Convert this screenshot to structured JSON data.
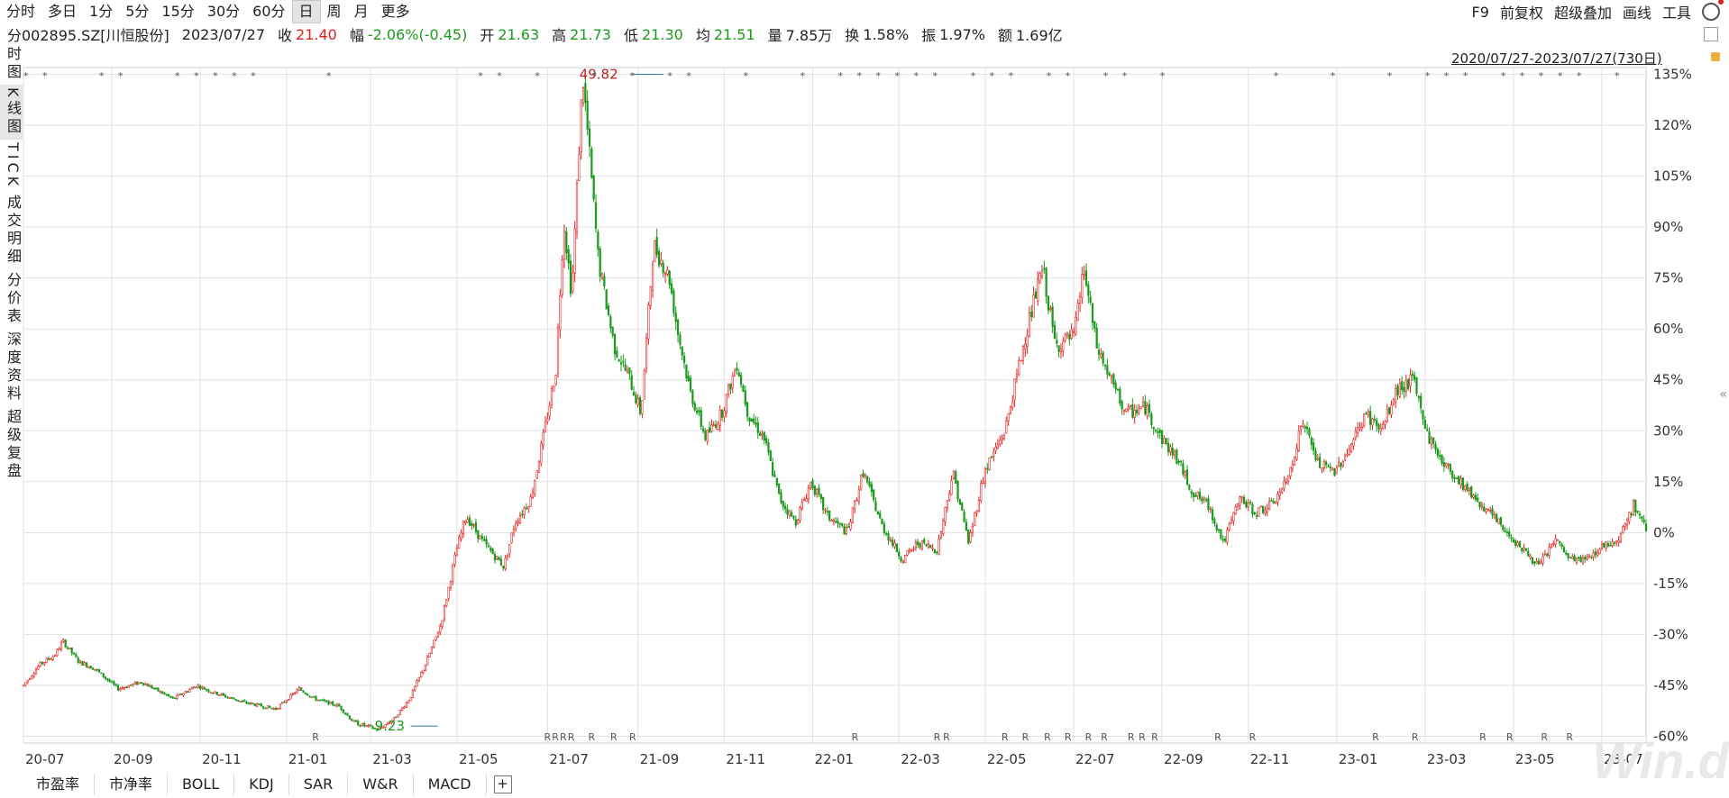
{
  "toolbar": {
    "period_tabs": [
      "分时",
      "多日",
      "1分",
      "5分",
      "15分",
      "30分",
      "60分",
      "日",
      "周",
      "月",
      "更多"
    ],
    "active_period": "日",
    "right_tools": [
      "F9",
      "前复权",
      "超级叠加",
      "画线",
      "工具"
    ]
  },
  "quote": {
    "code": "002895.SZ[川恒股份]",
    "date": "2023/07/27",
    "close_label": "收",
    "close": "21.40",
    "change_label": "幅",
    "change": "-2.06%(-0.45)",
    "open_label": "开",
    "open": "21.63",
    "high_label": "高",
    "high": "21.73",
    "low_label": "低",
    "low": "21.30",
    "avg_label": "均",
    "avg": "21.51",
    "vol_label": "量",
    "vol": "7.85万",
    "turnover_label": "换",
    "turnover": "1.58%",
    "amplitude_label": "振",
    "amplitude": "1.97%",
    "amount_label": "额",
    "amount": "1.69亿"
  },
  "sidebar": [
    "分时图",
    "K线图",
    "TICK",
    "成交明细",
    "分价表",
    "深度资料",
    "超级复盘"
  ],
  "sidebar_active": "K线图",
  "range_label": "2020/07/27-2023/07/27(730日)",
  "bottom_tabs": [
    "市盈率",
    "市净率",
    "BOLL",
    "KDJ",
    "SAR",
    "W&R",
    "MACD"
  ],
  "watermark": "Win.d",
  "colors": {
    "up": "#e02020",
    "down": "#1a9a1a",
    "grid": "#dcdcdc"
  },
  "chart_data": {
    "type": "candlestick",
    "ylabel_unit": "%",
    "ylim": [
      -62,
      137
    ],
    "y_ticks": [
      135,
      120,
      105,
      90,
      75,
      60,
      45,
      30,
      15,
      0,
      -15,
      -30,
      -45,
      -60
    ],
    "x_tick_labels": [
      "20-07",
      "20-09",
      "20-11",
      "21-01",
      "21-03",
      "21-05",
      "21-07",
      "21-09",
      "21-11",
      "22-01",
      "22-03",
      "22-05",
      "22-07",
      "22-09",
      "22-11",
      "23-01",
      "23-03",
      "23-05",
      "23-07"
    ],
    "x_tick_index": [
      0,
      42,
      84,
      125,
      165,
      206,
      249,
      292,
      333,
      375,
      416,
      457,
      499,
      541,
      582,
      624,
      666,
      708,
      750
    ],
    "n_days": 772,
    "max_label": "49.82",
    "max_index": 289,
    "min_label": "9.23",
    "min_index": 184,
    "key_points": [
      [
        0,
        -45
      ],
      [
        10,
        -39
      ],
      [
        20,
        -36
      ],
      [
        25,
        -32
      ],
      [
        35,
        -38
      ],
      [
        45,
        -40
      ],
      [
        60,
        -46
      ],
      [
        75,
        -44
      ],
      [
        95,
        -49
      ],
      [
        110,
        -45
      ],
      [
        120,
        -47
      ],
      [
        140,
        -50
      ],
      [
        160,
        -52
      ],
      [
        175,
        -46
      ],
      [
        185,
        -49
      ],
      [
        200,
        -51
      ],
      [
        210,
        -56
      ],
      [
        225,
        -58
      ],
      [
        235,
        -55
      ],
      [
        245,
        -49
      ],
      [
        255,
        -39
      ],
      [
        265,
        -27
      ],
      [
        275,
        -5
      ],
      [
        281,
        5
      ],
      [
        292,
        -3
      ],
      [
        305,
        -10
      ],
      [
        312,
        3
      ],
      [
        322,
        10
      ],
      [
        330,
        28
      ],
      [
        338,
        48
      ],
      [
        343,
        92
      ],
      [
        348,
        70
      ],
      [
        355,
        135
      ],
      [
        365,
        80
      ],
      [
        375,
        55
      ],
      [
        385,
        45
      ],
      [
        392,
        35
      ],
      [
        400,
        85
      ],
      [
        410,
        75
      ],
      [
        415,
        60
      ],
      [
        423,
        42
      ],
      [
        433,
        28
      ],
      [
        443,
        35
      ],
      [
        453,
        50
      ],
      [
        460,
        35
      ],
      [
        470,
        28
      ],
      [
        480,
        10
      ],
      [
        490,
        3
      ],
      [
        500,
        15
      ],
      [
        510,
        5
      ],
      [
        523,
        0
      ],
      [
        533,
        18
      ],
      [
        545,
        2
      ],
      [
        558,
        -8
      ],
      [
        568,
        -3
      ],
      [
        580,
        -5
      ],
      [
        590,
        18
      ],
      [
        600,
        -3
      ],
      [
        610,
        18
      ],
      [
        623,
        30
      ],
      [
        637,
        60
      ],
      [
        647,
        78
      ],
      [
        655,
        55
      ],
      [
        667,
        58
      ],
      [
        673,
        78
      ],
      [
        681,
        55
      ],
      [
        690,
        45
      ],
      [
        700,
        35
      ],
      [
        712,
        37
      ],
      [
        722,
        28
      ],
      [
        732,
        22
      ],
      [
        742,
        12
      ],
      [
        752,
        8
      ],
      [
        762,
        -3
      ],
      [
        772,
        10
      ],
      [
        782,
        6
      ],
      [
        792,
        8
      ],
      [
        802,
        15
      ],
      [
        812,
        33
      ],
      [
        822,
        20
      ],
      [
        832,
        18
      ],
      [
        842,
        25
      ],
      [
        852,
        35
      ],
      [
        862,
        30
      ],
      [
        872,
        42
      ],
      [
        882,
        45
      ],
      [
        892,
        28
      ],
      [
        902,
        20
      ],
      [
        912,
        15
      ],
      [
        922,
        10
      ],
      [
        932,
        5
      ],
      [
        942,
        0
      ],
      [
        952,
        -5
      ],
      [
        962,
        -10
      ],
      [
        972,
        -2
      ],
      [
        982,
        -8
      ],
      [
        992,
        -8
      ],
      [
        1002,
        -4
      ],
      [
        1012,
        -2
      ],
      [
        1022,
        8
      ],
      [
        1030,
        1
      ]
    ]
  }
}
